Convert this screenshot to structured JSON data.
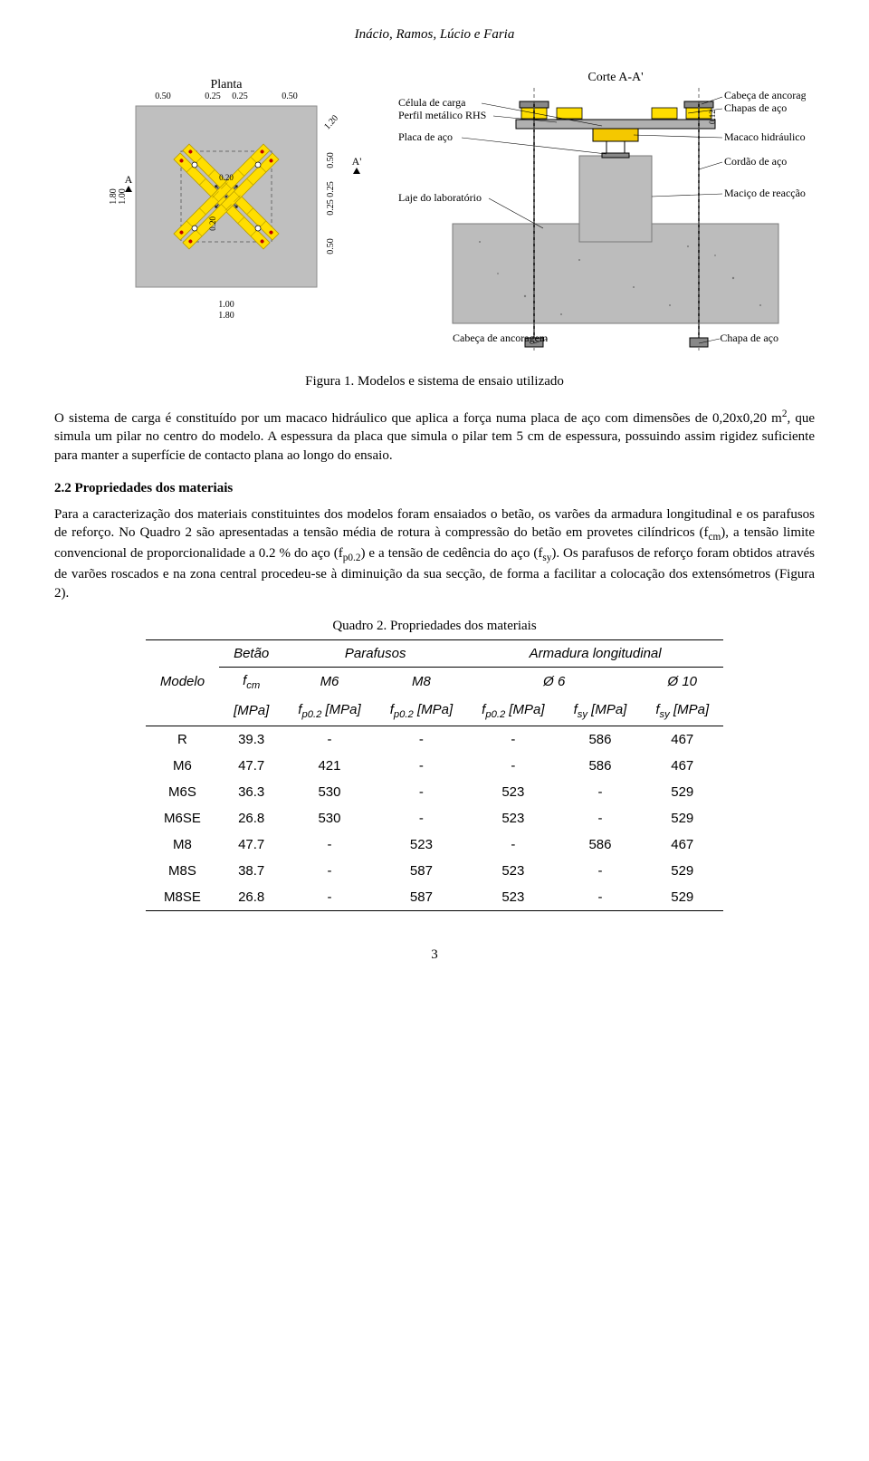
{
  "header": {
    "authors": "Inácio, Ramos, Lúcio e Faria"
  },
  "figure": {
    "caption": "Figura 1. Modelos e sistema de ensaio utilizado",
    "labels": {
      "planta": "Planta",
      "corte": "Corte A-A'",
      "celula": "Célula de carga",
      "perfil": "Perfil metálico RHS",
      "placa": "Placa de aço",
      "laje": "Laje do laboratório",
      "cabeca_ancoragem_top": "Cabeça de ancoragem",
      "chapas": "Chapas de aço",
      "macaco": "Macaco hidráulico",
      "cordao": "Cordão de aço",
      "macico": "Maciço de reacção",
      "cabeca_ancoragem_bot": "Cabeça de ancoragem",
      "chapa_bot": "Chapa de aço",
      "A": "A",
      "Aprime": "A'"
    },
    "dims": {
      "top": [
        "0.50",
        "0.25",
        "0.25",
        "0.50"
      ],
      "left": [
        "1.80",
        "1.00"
      ],
      "right": [
        "1.20",
        "0.50",
        "0.25",
        "0.25",
        "0.50"
      ],
      "bottom": [
        "1.00",
        "1.80"
      ],
      "inner": [
        "0.20",
        "0.20"
      ],
      "corte_012": "0.12"
    },
    "colors": {
      "slab": "#bfbfbf",
      "slab_border": "#8c8c8c",
      "yellow": "#ffde00",
      "yellow_stroke": "#b59b00",
      "column_hatched": "#9a9a9a",
      "dash": "#6b6b6b",
      "text": "#000000",
      "ground_fill": "#bcbcbc",
      "ground_stroke": "#7a7a7a",
      "macico_fill": "#bcbcbc",
      "jack_yellow": "#f4c800",
      "jack_stroke": "#000000",
      "steel": "#000000"
    }
  },
  "para1": "O sistema de carga é constituído por um macaco hidráulico que aplica a força numa placa de aço com dimensões de 0,20x0,20 m², que simula um pilar no centro do modelo. A espessura da placa que simula o pilar tem 5 cm de espessura, possuindo assim rigidez suficiente para manter a superfície de contacto plana ao longo do ensaio.",
  "heading22": "2.2 Propriedades dos materiais",
  "para2": "Para a caracterização dos materiais constituintes dos modelos foram ensaiados o betão, os varões da armadura longitudinal e os parafusos de reforço. No Quadro 2 são apresentadas a tensão média de rotura à compressão do betão em provetes cilíndricos (fcm), a tensão limite convencional de proporcionalidade a 0.2 % do aço (fp0.2) e a tensão de cedência do aço (fsy). Os parafusos de reforço foram obtidos através de varões roscados e na zona central procedeu-se à diminuição da sua secção, de forma a facilitar a colocação dos extensómetros (Figura 2).",
  "table": {
    "caption": "Quadro 2. Propriedades dos materiais",
    "group_headers": [
      "Betão",
      "Parafusos",
      "Armadura longitudinal"
    ],
    "col_headers": [
      "Modelo",
      "fcm",
      "M6",
      "M8",
      "Ø 6",
      "Ø 10"
    ],
    "unit_headers": [
      "",
      "[MPa]",
      "fp0.2 [MPa]",
      "fp0.2 [MPa]",
      "fp0.2 [MPa]",
      "fsy [MPa]",
      "fsy [MPa]"
    ],
    "rows": [
      [
        "R",
        "39.3",
        "-",
        "-",
        "-",
        "586",
        "467"
      ],
      [
        "M6",
        "47.7",
        "421",
        "-",
        "-",
        "586",
        "467"
      ],
      [
        "M6S",
        "36.3",
        "530",
        "-",
        "523",
        "-",
        "529"
      ],
      [
        "M6SE",
        "26.8",
        "530",
        "-",
        "523",
        "-",
        "529"
      ],
      [
        "M8",
        "47.7",
        "-",
        "523",
        "-",
        "586",
        "467"
      ],
      [
        "M8S",
        "38.7",
        "-",
        "587",
        "523",
        "-",
        "529"
      ],
      [
        "M8SE",
        "26.8",
        "-",
        "587",
        "523",
        "-",
        "529"
      ]
    ]
  },
  "pagenum": "3"
}
